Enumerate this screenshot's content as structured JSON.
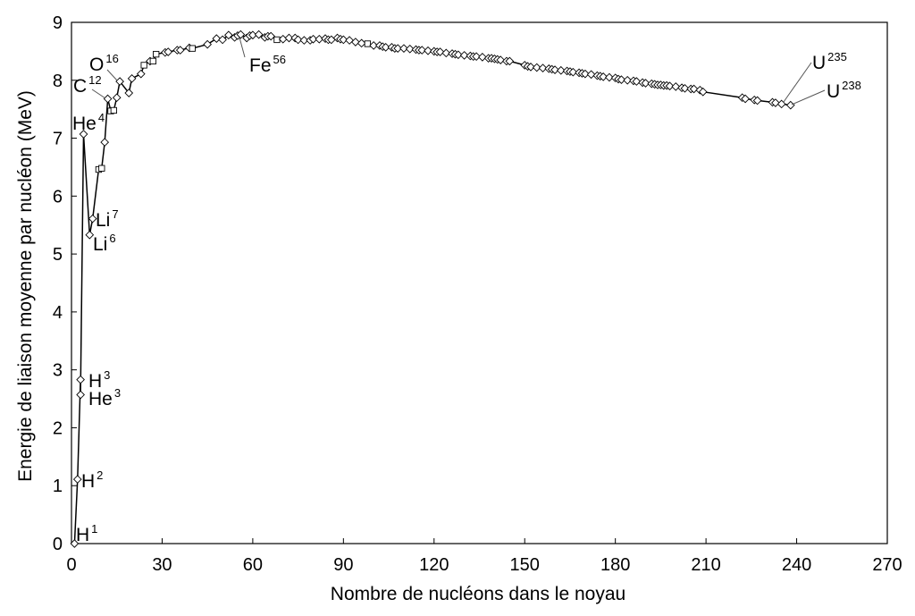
{
  "chart_data": {
    "type": "line",
    "title": "",
    "xlabel": "Nombre de nucléons dans le noyau",
    "ylabel": "Energie de liaison moyenne par nucléon (MeV)",
    "xlim": [
      0,
      270
    ],
    "ylim": [
      0,
      9
    ],
    "xticks": [
      "0",
      "30",
      "60",
      "90",
      "120",
      "150",
      "180",
      "210",
      "240",
      "270"
    ],
    "yticks": [
      "0",
      "1",
      "2",
      "3",
      "4",
      "5",
      "6",
      "7",
      "8",
      "9"
    ],
    "grid": false,
    "series": [
      {
        "name": "",
        "x": [
          1,
          2,
          3,
          3,
          4,
          6,
          7,
          9,
          10,
          11,
          12,
          13,
          14,
          15,
          16,
          19,
          20,
          23,
          24,
          26,
          27,
          28,
          31,
          32,
          35,
          36,
          39,
          40,
          45,
          48,
          50,
          52,
          54,
          55,
          56,
          58,
          59,
          60,
          62,
          64,
          65,
          66,
          68,
          70,
          72,
          74,
          75,
          77,
          79,
          80,
          82,
          84,
          85,
          86,
          88,
          89,
          90,
          92,
          94,
          96,
          98,
          100,
          102,
          103,
          104,
          106,
          107,
          108,
          110,
          112,
          114,
          115,
          116,
          118,
          120,
          121,
          122,
          124,
          126,
          127,
          128,
          130,
          132,
          133,
          134,
          136,
          138,
          139,
          140,
          141,
          142,
          144,
          145,
          150,
          151,
          152,
          154,
          156,
          158,
          159,
          160,
          162,
          164,
          165,
          166,
          168,
          169,
          170,
          172,
          174,
          175,
          176,
          178,
          180,
          181,
          182,
          184,
          186,
          187,
          189,
          190,
          192,
          193,
          194,
          195,
          196,
          197,
          198,
          200,
          202,
          203,
          205,
          206,
          208,
          209,
          222,
          223,
          226,
          227,
          232,
          233,
          235,
          238
        ],
        "y": [
          0,
          1.11,
          2.83,
          2.57,
          7.07,
          5.33,
          5.61,
          6.46,
          6.48,
          6.93,
          7.68,
          7.47,
          7.48,
          7.7,
          7.98,
          7.78,
          8.03,
          8.11,
          8.26,
          8.33,
          8.33,
          8.45,
          8.48,
          8.49,
          8.52,
          8.52,
          8.56,
          8.55,
          8.62,
          8.72,
          8.7,
          8.78,
          8.74,
          8.77,
          8.79,
          8.73,
          8.77,
          8.78,
          8.79,
          8.74,
          8.76,
          8.76,
          8.7,
          8.71,
          8.73,
          8.73,
          8.7,
          8.69,
          8.69,
          8.71,
          8.71,
          8.72,
          8.7,
          8.7,
          8.73,
          8.71,
          8.7,
          8.69,
          8.66,
          8.64,
          8.63,
          8.6,
          8.6,
          8.58,
          8.57,
          8.57,
          8.55,
          8.55,
          8.55,
          8.54,
          8.53,
          8.52,
          8.52,
          8.51,
          8.5,
          8.49,
          8.49,
          8.47,
          8.46,
          8.45,
          8.44,
          8.43,
          8.42,
          8.41,
          8.41,
          8.4,
          8.38,
          8.38,
          8.37,
          8.36,
          8.35,
          8.33,
          8.33,
          8.26,
          8.24,
          8.23,
          8.22,
          8.21,
          8.2,
          8.19,
          8.18,
          8.17,
          8.16,
          8.15,
          8.14,
          8.13,
          8.12,
          8.11,
          8.1,
          8.08,
          8.07,
          8.06,
          8.05,
          8.04,
          8.02,
          8.01,
          8.0,
          7.99,
          7.98,
          7.96,
          7.95,
          7.94,
          7.93,
          7.92,
          7.92,
          7.91,
          7.91,
          7.9,
          7.89,
          7.87,
          7.86,
          7.85,
          7.85,
          7.83,
          7.8,
          7.7,
          7.68,
          7.66,
          7.65,
          7.62,
          7.61,
          7.59,
          7.57
        ]
      }
    ],
    "annotations": [
      {
        "base": "H",
        "sup": "1"
      },
      {
        "base": "H",
        "sup": "2"
      },
      {
        "base": "H",
        "sup": "3"
      },
      {
        "base": "He",
        "sup": "3"
      },
      {
        "base": "He",
        "sup": "4"
      },
      {
        "base": "Li",
        "sup": "7"
      },
      {
        "base": "Li",
        "sup": "6"
      },
      {
        "base": "C",
        "sup": "12"
      },
      {
        "base": "O",
        "sup": "16"
      },
      {
        "base": "Fe",
        "sup": "56"
      },
      {
        "base": "U",
        "sup": "235"
      },
      {
        "base": "U",
        "sup": "238"
      }
    ]
  }
}
